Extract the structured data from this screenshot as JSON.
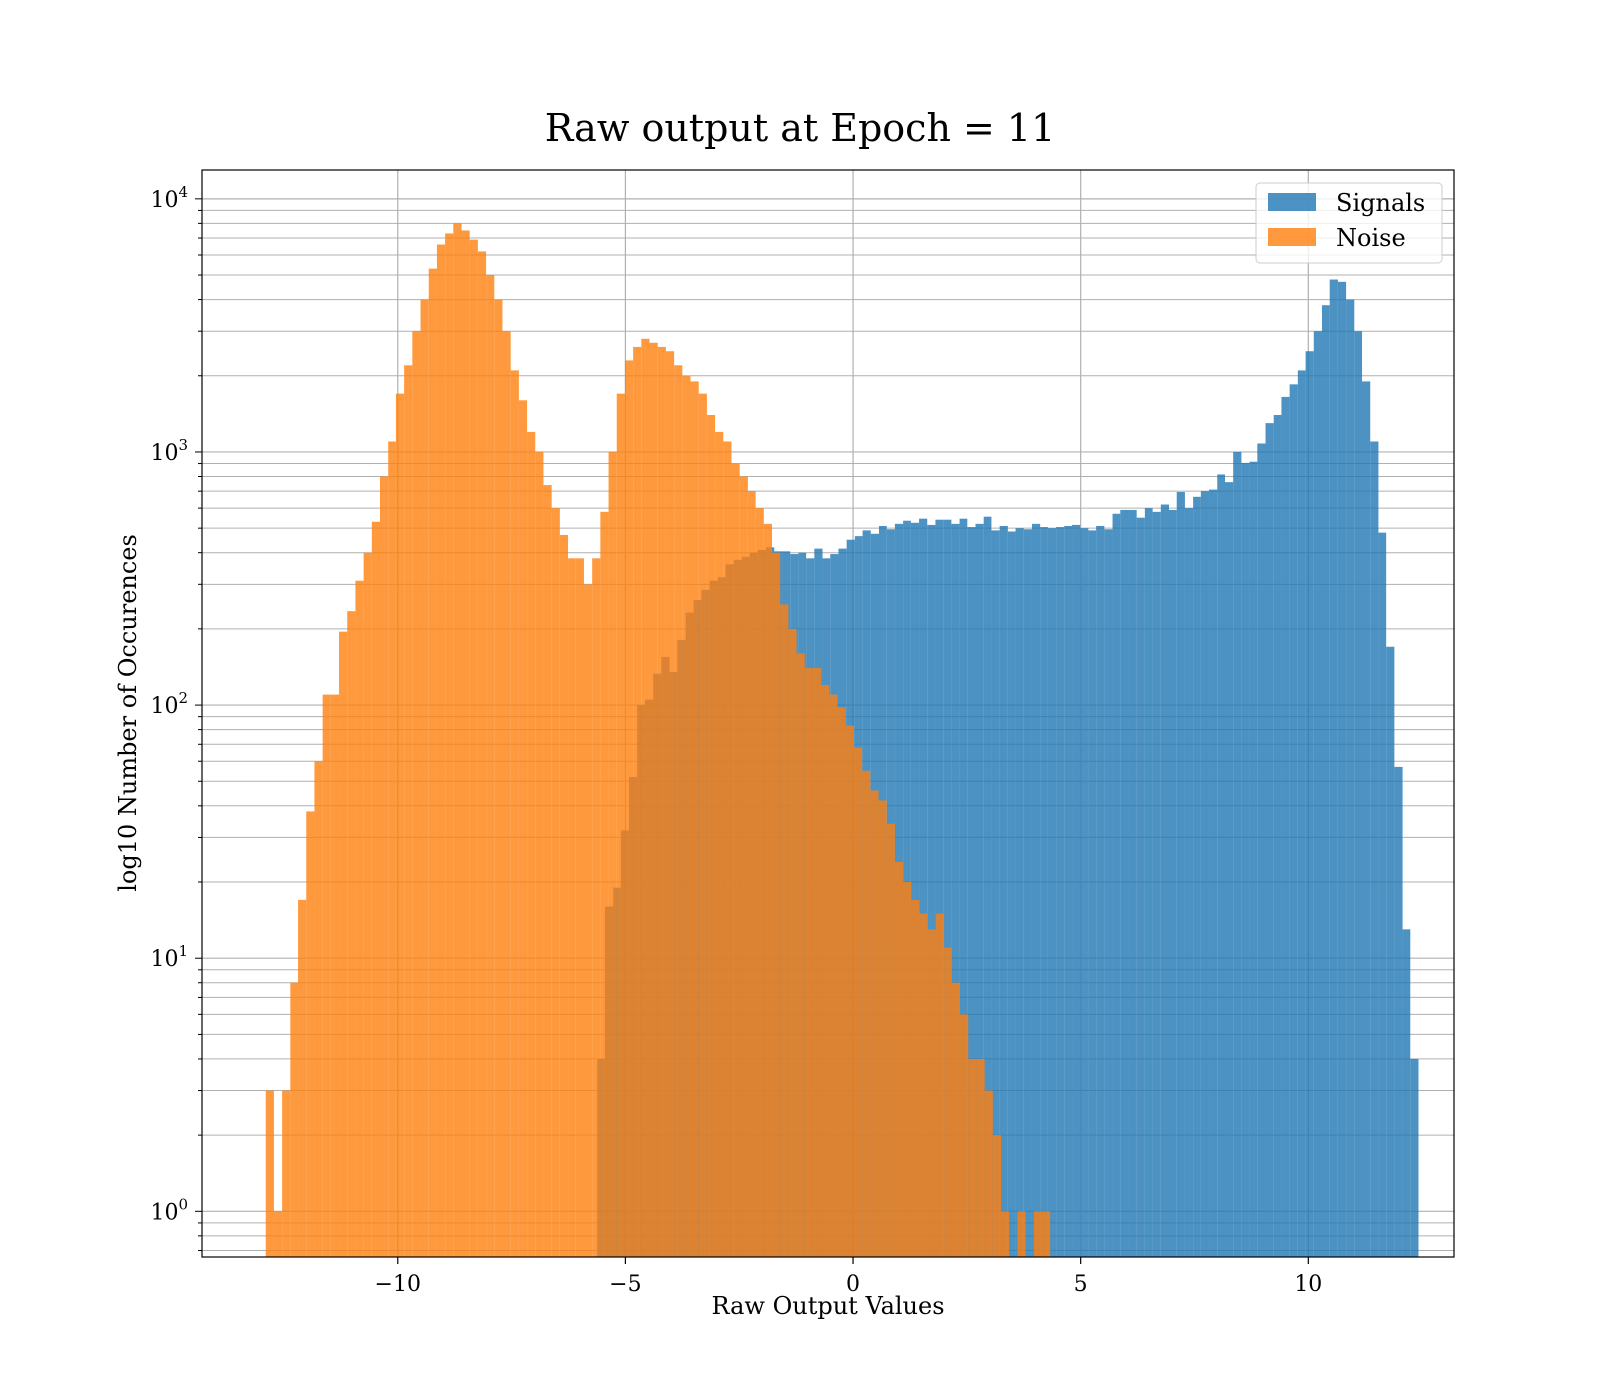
{
  "chart_data": {
    "type": "histogram",
    "title": "Raw output at Epoch = 11",
    "xlabel": "Raw Output Values",
    "ylabel": "log10 Number of Occurences",
    "xlim": [
      -14.3,
      13.2
    ],
    "ylim": [
      0.66,
      13000
    ],
    "yscale": "log",
    "grid": true,
    "legend_position": "top-right",
    "x_ticks": [
      {
        "value": -10,
        "label": "−10"
      },
      {
        "value": -5,
        "label": "−5"
      },
      {
        "value": 0,
        "label": "0"
      },
      {
        "value": 5,
        "label": "5"
      },
      {
        "value": 10,
        "label": "10"
      }
    ],
    "y_ticks": [
      {
        "value": 1,
        "base": "10",
        "exp": "0"
      },
      {
        "value": 10,
        "base": "10",
        "exp": "1"
      },
      {
        "value": 100,
        "base": "10",
        "exp": "2"
      },
      {
        "value": 1000,
        "base": "10",
        "exp": "3"
      },
      {
        "value": 10000,
        "base": "10",
        "exp": "4"
      }
    ],
    "series": [
      {
        "name": "Signals",
        "color": "#1f77b4",
        "opacity": 0.8,
        "bins": [
          [
            -5.62,
            -5.45,
            4
          ],
          [
            -5.45,
            -5.27,
            16
          ],
          [
            -5.27,
            -5.1,
            19
          ],
          [
            -5.1,
            -4.92,
            32
          ],
          [
            -4.92,
            -4.74,
            52
          ],
          [
            -4.74,
            -4.57,
            100
          ],
          [
            -4.57,
            -4.39,
            105
          ],
          [
            -4.39,
            -4.21,
            133
          ],
          [
            -4.21,
            -4.03,
            155
          ],
          [
            -4.03,
            -3.86,
            135
          ],
          [
            -3.86,
            -3.68,
            181
          ],
          [
            -3.68,
            -3.5,
            232
          ],
          [
            -3.5,
            -3.33,
            260
          ],
          [
            -3.33,
            -3.15,
            285
          ],
          [
            -3.15,
            -2.97,
            310
          ],
          [
            -2.97,
            -2.8,
            320
          ],
          [
            -2.8,
            -2.62,
            360
          ],
          [
            -2.62,
            -2.44,
            375
          ],
          [
            -2.44,
            -2.27,
            385
          ],
          [
            -2.27,
            -2.09,
            400
          ],
          [
            -2.09,
            -1.91,
            410
          ],
          [
            -1.91,
            -1.73,
            420
          ],
          [
            -1.73,
            -1.56,
            405
          ],
          [
            -1.56,
            -1.38,
            405
          ],
          [
            -1.38,
            -1.2,
            395
          ],
          [
            -1.2,
            -1.03,
            400
          ],
          [
            -1.03,
            -0.85,
            380
          ],
          [
            -0.85,
            -0.67,
            415
          ],
          [
            -0.67,
            -0.5,
            380
          ],
          [
            -0.5,
            -0.32,
            395
          ],
          [
            -0.32,
            -0.14,
            415
          ],
          [
            -0.14,
            0.04,
            450
          ],
          [
            0.04,
            0.21,
            465
          ],
          [
            0.21,
            0.39,
            490
          ],
          [
            0.39,
            0.57,
            475
          ],
          [
            0.57,
            0.74,
            510
          ],
          [
            0.74,
            0.92,
            495
          ],
          [
            0.92,
            1.1,
            520
          ],
          [
            1.1,
            1.27,
            535
          ],
          [
            1.27,
            1.45,
            525
          ],
          [
            1.45,
            1.63,
            545
          ],
          [
            1.63,
            1.81,
            515
          ],
          [
            1.81,
            1.98,
            540
          ],
          [
            1.98,
            2.16,
            540
          ],
          [
            2.16,
            2.34,
            520
          ],
          [
            2.34,
            2.51,
            545
          ],
          [
            2.51,
            2.69,
            505
          ],
          [
            2.69,
            2.87,
            520
          ],
          [
            2.87,
            3.04,
            555
          ],
          [
            3.04,
            3.22,
            490
          ],
          [
            3.22,
            3.4,
            510
          ],
          [
            3.4,
            3.57,
            485
          ],
          [
            3.57,
            3.75,
            500
          ],
          [
            3.75,
            3.93,
            495
          ],
          [
            3.93,
            4.11,
            520
          ],
          [
            4.11,
            4.28,
            505
          ],
          [
            4.28,
            4.46,
            500
          ],
          [
            4.46,
            4.64,
            505
          ],
          [
            4.64,
            4.81,
            510
          ],
          [
            4.81,
            4.99,
            515
          ],
          [
            4.99,
            5.17,
            500
          ],
          [
            5.17,
            5.34,
            490
          ],
          [
            5.34,
            5.52,
            510
          ],
          [
            5.52,
            5.7,
            495
          ],
          [
            5.7,
            5.87,
            570
          ],
          [
            5.87,
            6.05,
            590
          ],
          [
            6.05,
            6.23,
            590
          ],
          [
            6.23,
            6.41,
            550
          ],
          [
            6.41,
            6.58,
            600
          ],
          [
            6.58,
            6.76,
            580
          ],
          [
            6.76,
            6.94,
            620
          ],
          [
            6.94,
            7.11,
            590
          ],
          [
            7.11,
            7.29,
            695
          ],
          [
            7.29,
            7.47,
            600
          ],
          [
            7.47,
            7.64,
            665
          ],
          [
            7.64,
            7.82,
            700
          ],
          [
            7.82,
            8.0,
            710
          ],
          [
            8.0,
            8.17,
            815
          ],
          [
            8.17,
            8.35,
            760
          ],
          [
            8.35,
            8.53,
            1000
          ],
          [
            8.53,
            8.71,
            905
          ],
          [
            8.71,
            8.88,
            915
          ],
          [
            8.88,
            9.06,
            1080
          ],
          [
            9.06,
            9.24,
            1300
          ],
          [
            9.24,
            9.41,
            1400
          ],
          [
            9.41,
            9.59,
            1650
          ],
          [
            9.59,
            9.77,
            1850
          ],
          [
            9.77,
            9.94,
            2100
          ],
          [
            9.94,
            10.12,
            2500
          ],
          [
            10.12,
            10.3,
            3000
          ],
          [
            10.3,
            10.47,
            3800
          ],
          [
            10.47,
            10.65,
            4800
          ],
          [
            10.65,
            10.83,
            4700
          ],
          [
            10.83,
            11.01,
            4000
          ],
          [
            11.01,
            11.18,
            3000
          ],
          [
            11.18,
            11.36,
            1900
          ],
          [
            11.36,
            11.54,
            1100
          ],
          [
            11.54,
            11.71,
            480
          ],
          [
            11.71,
            11.89,
            170
          ],
          [
            11.89,
            12.07,
            57
          ],
          [
            12.07,
            12.24,
            13
          ],
          [
            12.24,
            12.42,
            4
          ]
        ]
      },
      {
        "name": "Noise",
        "color": "#ff7f0e",
        "opacity": 0.8,
        "bins": [
          [
            -12.9,
            -12.72,
            3
          ],
          [
            -12.72,
            -12.54,
            1
          ],
          [
            -12.54,
            -12.36,
            3
          ],
          [
            -12.36,
            -12.19,
            8
          ],
          [
            -12.19,
            -12.01,
            17
          ],
          [
            -12.01,
            -11.83,
            38
          ],
          [
            -11.83,
            -11.65,
            60
          ],
          [
            -11.65,
            -11.47,
            110
          ],
          [
            -11.47,
            -11.29,
            110
          ],
          [
            -11.29,
            -11.11,
            195
          ],
          [
            -11.11,
            -10.93,
            235
          ],
          [
            -10.93,
            -10.75,
            310
          ],
          [
            -10.75,
            -10.57,
            400
          ],
          [
            -10.57,
            -10.39,
            530
          ],
          [
            -10.39,
            -10.21,
            800
          ],
          [
            -10.21,
            -10.04,
            1100
          ],
          [
            -10.04,
            -9.86,
            1700
          ],
          [
            -9.86,
            -9.68,
            2200
          ],
          [
            -9.68,
            -9.5,
            3000
          ],
          [
            -9.5,
            -9.32,
            4000
          ],
          [
            -9.32,
            -9.14,
            5300
          ],
          [
            -9.14,
            -8.96,
            6600
          ],
          [
            -8.96,
            -8.78,
            7300
          ],
          [
            -8.78,
            -8.6,
            8000
          ],
          [
            -8.6,
            -8.42,
            7500
          ],
          [
            -8.42,
            -8.24,
            6900
          ],
          [
            -8.24,
            -8.06,
            6200
          ],
          [
            -8.06,
            -7.88,
            5000
          ],
          [
            -7.88,
            -7.7,
            4000
          ],
          [
            -7.7,
            -7.52,
            3000
          ],
          [
            -7.52,
            -7.34,
            2100
          ],
          [
            -7.34,
            -7.16,
            1600
          ],
          [
            -7.16,
            -6.98,
            1200
          ],
          [
            -6.98,
            -6.8,
            1000
          ],
          [
            -6.8,
            -6.62,
            740
          ],
          [
            -6.62,
            -6.44,
            600
          ],
          [
            -6.44,
            -6.26,
            470
          ],
          [
            -6.26,
            -6.09,
            380
          ],
          [
            -6.09,
            -5.91,
            380
          ],
          [
            -5.91,
            -5.73,
            300
          ],
          [
            -5.73,
            -5.55,
            380
          ],
          [
            -5.55,
            -5.37,
            580
          ],
          [
            -5.37,
            -5.19,
            1000
          ],
          [
            -5.19,
            -5.01,
            1700
          ],
          [
            -5.01,
            -4.83,
            2300
          ],
          [
            -4.83,
            -4.65,
            2600
          ],
          [
            -4.65,
            -4.47,
            2800
          ],
          [
            -4.47,
            -4.29,
            2700
          ],
          [
            -4.29,
            -4.11,
            2600
          ],
          [
            -4.11,
            -3.93,
            2500
          ],
          [
            -3.93,
            -3.75,
            2200
          ],
          [
            -3.75,
            -3.57,
            2000
          ],
          [
            -3.57,
            -3.39,
            1900
          ],
          [
            -3.39,
            -3.21,
            1700
          ],
          [
            -3.21,
            -3.03,
            1400
          ],
          [
            -3.03,
            -2.85,
            1200
          ],
          [
            -2.85,
            -2.67,
            1100
          ],
          [
            -2.67,
            -2.49,
            900
          ],
          [
            -2.49,
            -2.31,
            800
          ],
          [
            -2.31,
            -2.14,
            700
          ],
          [
            -2.14,
            -1.96,
            600
          ],
          [
            -1.96,
            -1.78,
            520
          ],
          [
            -1.78,
            -1.6,
            400
          ],
          [
            -1.6,
            -1.42,
            250
          ],
          [
            -1.42,
            -1.24,
            200
          ],
          [
            -1.24,
            -1.06,
            160
          ],
          [
            -1.06,
            -0.88,
            140
          ],
          [
            -0.88,
            -0.7,
            140
          ],
          [
            -0.7,
            -0.52,
            120
          ],
          [
            -0.52,
            -0.34,
            110
          ],
          [
            -0.34,
            -0.16,
            98
          ],
          [
            -0.16,
            0.02,
            83
          ],
          [
            0.02,
            0.2,
            68
          ],
          [
            0.2,
            0.38,
            55
          ],
          [
            0.38,
            0.56,
            46
          ],
          [
            0.56,
            0.74,
            42
          ],
          [
            0.74,
            0.92,
            34
          ],
          [
            0.92,
            1.1,
            24
          ],
          [
            1.1,
            1.28,
            20
          ],
          [
            1.28,
            1.46,
            17
          ],
          [
            1.46,
            1.64,
            15
          ],
          [
            1.64,
            1.82,
            13
          ],
          [
            1.82,
            2.0,
            15
          ],
          [
            2.0,
            2.17,
            11
          ],
          [
            2.17,
            2.35,
            8
          ],
          [
            2.35,
            2.53,
            6
          ],
          [
            2.53,
            2.71,
            4
          ],
          [
            2.71,
            2.89,
            4
          ],
          [
            2.89,
            3.07,
            3
          ],
          [
            3.07,
            3.25,
            2
          ],
          [
            3.25,
            3.43,
            1
          ],
          [
            3.43,
            3.61,
            0
          ],
          [
            3.61,
            3.79,
            1
          ],
          [
            3.79,
            3.97,
            0
          ],
          [
            3.97,
            4.15,
            1
          ],
          [
            4.15,
            4.33,
            1
          ]
        ]
      }
    ]
  }
}
